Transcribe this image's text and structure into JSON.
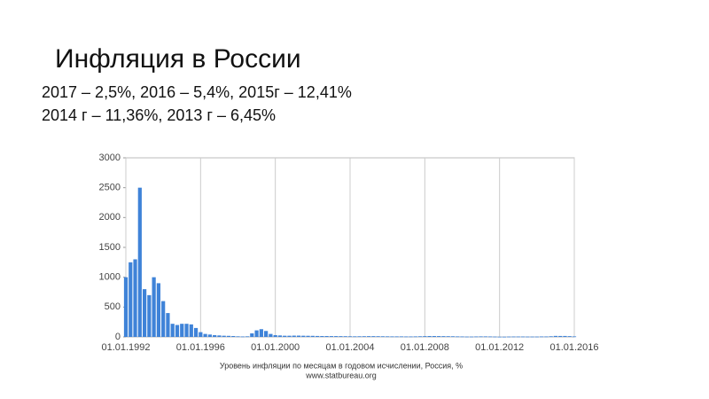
{
  "chart_data": {
    "type": "bar",
    "title": "Инфляция в России",
    "subtitle": [
      "2017 – 2,5%, 2016 – 5,4%, 2015г – 12,41%",
      "2014 г – 11,36%, 2013 г – 6,45%"
    ],
    "x_label": "Уровень инфляции по месяцам в годовом исчислении, Россия, %",
    "source": "www.statbureau.org",
    "color": "#3f83d8",
    "grid": true,
    "x": [
      1992,
      1992.25,
      1992.5,
      1992.75,
      1993,
      1993.25,
      1993.5,
      1993.75,
      1994,
      1994.25,
      1994.5,
      1994.75,
      1995,
      1995.25,
      1995.5,
      1995.75,
      1996,
      1996.25,
      1996.5,
      1996.75,
      1997,
      1997.25,
      1997.5,
      1997.75,
      1998,
      1998.25,
      1998.5,
      1998.75,
      1999,
      1999.25,
      1999.5,
      1999.75,
      2000,
      2000.25,
      2000.5,
      2000.75,
      2001,
      2001.25,
      2001.5,
      2001.75,
      2002,
      2002.25,
      2002.5,
      2002.75,
      2003,
      2003.25,
      2003.5,
      2003.75,
      2004,
      2004.25,
      2004.5,
      2004.75,
      2005,
      2005.25,
      2005.5,
      2005.75,
      2006,
      2006.25,
      2006.5,
      2006.75,
      2007,
      2007.25,
      2007.5,
      2007.75,
      2008,
      2008.25,
      2008.5,
      2008.75,
      2009,
      2009.25,
      2009.5,
      2009.75,
      2010,
      2010.25,
      2010.5,
      2010.75,
      2011,
      2011.25,
      2011.5,
      2011.75,
      2012,
      2012.25,
      2012.5,
      2012.75,
      2013,
      2013.25,
      2013.5,
      2013.75,
      2014,
      2014.25,
      2014.5,
      2014.75,
      2015,
      2015.25,
      2015.5,
      2015.75,
      2016
    ],
    "values": [
      1000,
      1250,
      1300,
      2500,
      800,
      700,
      1000,
      900,
      600,
      400,
      220,
      200,
      220,
      220,
      210,
      150,
      80,
      50,
      40,
      30,
      25,
      20,
      18,
      15,
      10,
      8,
      10,
      60,
      110,
      130,
      100,
      50,
      30,
      25,
      20,
      20,
      22,
      22,
      20,
      19,
      18,
      16,
      15,
      15,
      14,
      14,
      13,
      12,
      11,
      10,
      11,
      12,
      13,
      13,
      12,
      11,
      10,
      9,
      9,
      9,
      8,
      8,
      9,
      11,
      13,
      15,
      15,
      14,
      13,
      12,
      11,
      9,
      8,
      6,
      6,
      8,
      9,
      9,
      8,
      6,
      4,
      4,
      6,
      7,
      7,
      7,
      6,
      6,
      6,
      8,
      8,
      11,
      17,
      16,
      16,
      13,
      9
    ],
    "xlim": [
      1992,
      2016
    ],
    "xticks": [
      {
        "value": 1992,
        "label": "01.01.1992"
      },
      {
        "value": 1996,
        "label": "01.01.1996"
      },
      {
        "value": 2000,
        "label": "01.01.2000"
      },
      {
        "value": 2004,
        "label": "01.01.2004"
      },
      {
        "value": 2008,
        "label": "01.01.2008"
      },
      {
        "value": 2012,
        "label": "01.01.2012"
      },
      {
        "value": 2016,
        "label": "01.01.2016"
      }
    ],
    "ylim": [
      0,
      3000
    ],
    "yticks": [
      0,
      500,
      1000,
      1500,
      2000,
      2500,
      3000
    ]
  }
}
